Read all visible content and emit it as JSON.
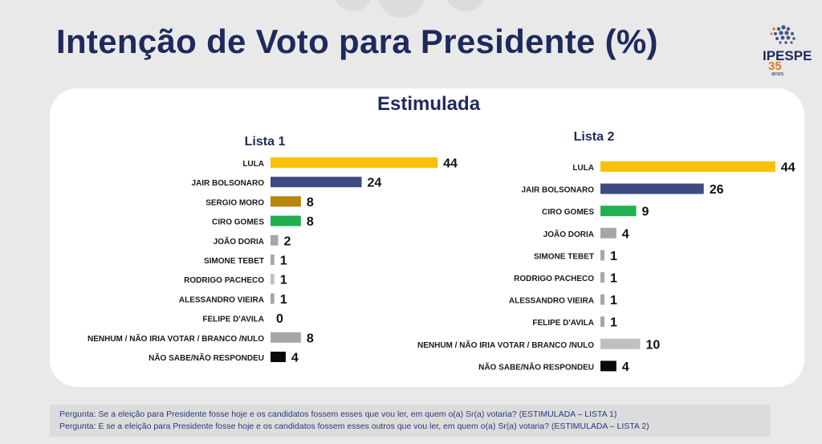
{
  "header": {
    "title": "Intenção de Voto para Presidente (%)",
    "logo_name": "IPESPE",
    "logo_years": "35",
    "logo_years_label": "anos"
  },
  "subtitle": "Estimulada",
  "chart_data": [
    {
      "type": "bar",
      "orientation": "horizontal",
      "title": "Lista 1",
      "categories": [
        "LULA",
        "JAIR BOLSONARO",
        "SERGIO MORO",
        "CIRO GOMES",
        "JOÃO DORIA",
        "SIMONE TEBET",
        "RODRIGO PACHECO",
        "ALESSANDRO VIEIRA",
        "FELIPE D'AVILA",
        "NENHUM / NÃO IRIA VOTAR / BRANCO /NULO",
        "NÃO SABE/NÃO RESPONDEU"
      ],
      "values": [
        44,
        24,
        8,
        8,
        2,
        1,
        1,
        1,
        0,
        8,
        4
      ],
      "value_labels": [
        "44",
        "24",
        "8",
        "8",
        "2",
        "1",
        "1",
        "1",
        "0",
        "8",
        "4"
      ],
      "colors": [
        "#fcbf0b",
        "#3d4b82",
        "#b8860b",
        "#22b04f",
        "#a6a6a6",
        "#a6a6a6",
        "#c0c0c0",
        "#a6a6a6",
        "#a6a6a6",
        "#a6a6a6",
        "#0a0a0a"
      ],
      "xlim": [
        0,
        100
      ],
      "grid": false
    },
    {
      "type": "bar",
      "orientation": "horizontal",
      "title": "Lista 2",
      "categories": [
        "LULA",
        "JAIR BOLSONARO",
        "CIRO GOMES",
        "JOÃO DORIA",
        "SIMONE TEBET",
        "RODRIGO PACHECO",
        "ALESSANDRO VIEIRA",
        "FELIPE D'AVILA",
        "NENHUM / NÃO IRIA VOTAR / BRANCO /NULO",
        "NÃO SABE/NÃO RESPONDEU"
      ],
      "values": [
        44,
        26,
        9,
        4,
        1,
        1,
        1,
        1,
        10,
        4
      ],
      "value_labels": [
        "44",
        "26",
        "9",
        "4",
        "1",
        "1",
        "1",
        "1",
        "10",
        "4"
      ],
      "colors": [
        "#fcbf0b",
        "#3d4b82",
        "#22b04f",
        "#a6a6a6",
        "#a6a6a6",
        "#a6a6a6",
        "#a6a6a6",
        "#a6a6a6",
        "#c0c0c0",
        "#0a0a0a"
      ],
      "xlim": [
        0,
        100
      ],
      "grid": false
    }
  ],
  "footer": {
    "line1": "Pergunta:  Se a eleição para Presidente fosse hoje e os candidatos fossem esses que vou ler, em quem o(a) Sr(a) votaria? (ESTIMULADA – LISTA 1)",
    "line2": "Pergunta:  E se a eleição para Presidente fosse hoje e os candidatos fossem esses outros que vou ler, em quem o(a) Sr(a) votaria?  (ESTIMULADA – LISTA 2)"
  }
}
